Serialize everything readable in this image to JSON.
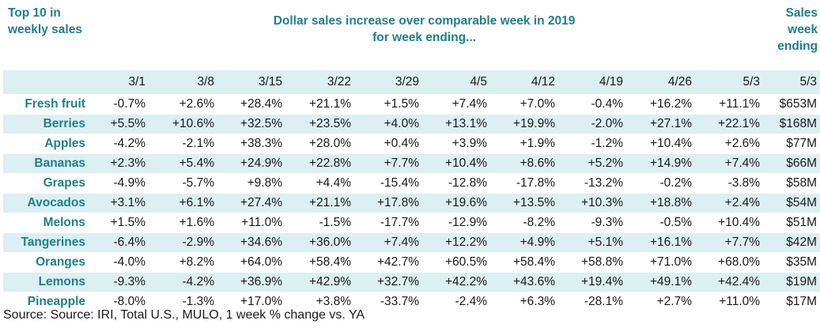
{
  "header": {
    "left": "Top 10 in weekly sales",
    "middle_line1": "Dollar sales increase over comparable week in 2019",
    "middle_line2": "for week ending...",
    "right": "Sales week ending"
  },
  "columns": [
    "3/1",
    "3/8",
    "3/15",
    "3/22",
    "3/29",
    "4/5",
    "4/12",
    "4/19",
    "4/26",
    "5/3",
    "5/3"
  ],
  "rows": [
    {
      "label": "Fresh fruit",
      "values": [
        "-0.7%",
        "+2.6%",
        "+28.4%",
        "+21.1%",
        "+1.5%",
        "+7.4%",
        "+7.0%",
        "-0.4%",
        "+16.2%",
        "+11.1%",
        "$653M"
      ]
    },
    {
      "label": "Berries",
      "values": [
        "+5.5%",
        "+10.6%",
        "+32.5%",
        "+23.5%",
        "+4.0%",
        "+13.1%",
        "+19.9%",
        "-2.0%",
        "+27.1%",
        "+22.1%",
        "$168M"
      ]
    },
    {
      "label": "Apples",
      "values": [
        "-4.2%",
        "-2.1%",
        "+38.3%",
        "+28.0%",
        "+0.4%",
        "+3.9%",
        "+1.9%",
        "-1.2%",
        "+10.4%",
        "+2.6%",
        "$77M"
      ]
    },
    {
      "label": "Bananas",
      "values": [
        "+2.3%",
        "+5.4%",
        "+24.9%",
        "+22.8%",
        "+7.7%",
        "+10.4%",
        "+8.6%",
        "+5.2%",
        "+14.9%",
        "+7.4%",
        "$66M"
      ]
    },
    {
      "label": "Grapes",
      "values": [
        "-4.9%",
        "-5.7%",
        "+9.8%",
        "+4.4%",
        "-15.4%",
        "-12.8%",
        "-17.8%",
        "-13.2%",
        "-0.2%",
        "-3.8%",
        "$58M"
      ]
    },
    {
      "label": "Avocados",
      "values": [
        "+3.1%",
        "+6.1%",
        "+27.4%",
        "+21.1%",
        "+17.8%",
        "+19.6%",
        "+13.5%",
        "+10.3%",
        "+18.8%",
        "+2.4%",
        "$54M"
      ]
    },
    {
      "label": "Melons",
      "values": [
        "+1.5%",
        "+1.6%",
        "+11.0%",
        "-1.5%",
        "-17.7%",
        "-12.9%",
        "-8.2%",
        "-9.3%",
        "-0.5%",
        "+10.4%",
        "$51M"
      ]
    },
    {
      "label": "Tangerines",
      "values": [
        "-6.4%",
        "-2.9%",
        "+34.6%",
        "+36.0%",
        "+7.4%",
        "+12.2%",
        "+4.9%",
        "+5.1%",
        "+16.1%",
        "+7.7%",
        "$42M"
      ]
    },
    {
      "label": "Oranges",
      "values": [
        "-4.0%",
        "+8.2%",
        "+64.0%",
        "+58.4%",
        "+42.7%",
        "+60.5%",
        "+58.4%",
        "+58.8%",
        "+71.0%",
        "+68.0%",
        "$35M"
      ]
    },
    {
      "label": "Lemons",
      "values": [
        "-9.3%",
        "-4.2%",
        "+36.9%",
        "+42.9%",
        "+32.7%",
        "+42.2%",
        "+43.6%",
        "+19.4%",
        "+49.1%",
        "+42.4%",
        "$19M"
      ]
    },
    {
      "label": "Pineapple",
      "values": [
        "-8.0%",
        "-1.3%",
        "+17.0%",
        "+3.8%",
        "-33.7%",
        "-2.4%",
        "+6.3%",
        "-28.1%",
        "+2.7%",
        "+11.0%",
        "$17M"
      ]
    }
  ],
  "source": "Source: Source: IRI, Total U.S., MULO, 1 week % change vs. YA",
  "colors": {
    "accent": "#1f7f8c",
    "shade": "#dceff3",
    "text": "#1a1a1a"
  }
}
